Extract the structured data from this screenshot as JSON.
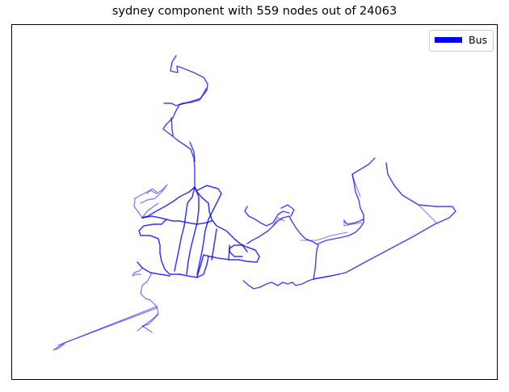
{
  "title": "sydney component with 559 nodes out of 24063",
  "legend": {
    "label": "Bus",
    "color": "#0000ff"
  },
  "colors": {
    "route": "#0000ff",
    "frame": "#000000",
    "background": "#ffffff"
  }
}
